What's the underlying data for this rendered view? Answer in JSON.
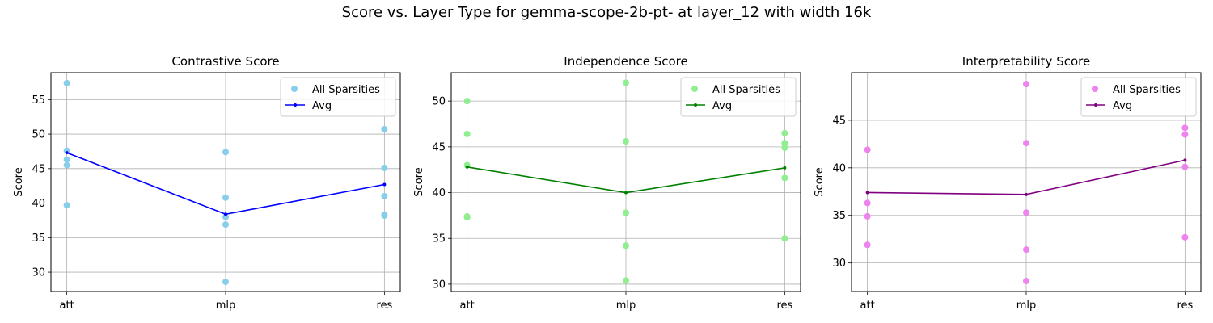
{
  "figure": {
    "title": "Score vs. Layer Type for gemma-scope-2b-pt- at layer_12 with width 16k"
  },
  "chart_data": [
    {
      "type": "scatter",
      "title": "Contrastive Score",
      "xlabel": "",
      "ylabel": "Score",
      "categories": [
        "att",
        "mlp",
        "res"
      ],
      "ylim": [
        27.2,
        58.9
      ],
      "yticks": [
        30,
        35,
        40,
        45,
        50,
        55
      ],
      "grid": true,
      "legend_position": "top-right",
      "scatter_series": {
        "name": "All Sparsities",
        "color": "#87CEEB",
        "points": [
          {
            "x": "att",
            "y": 57.4
          },
          {
            "x": "att",
            "y": 47.6
          },
          {
            "x": "att",
            "y": 46.3
          },
          {
            "x": "att",
            "y": 45.5
          },
          {
            "x": "att",
            "y": 39.7
          },
          {
            "x": "mlp",
            "y": 47.4
          },
          {
            "x": "mlp",
            "y": 40.8
          },
          {
            "x": "mlp",
            "y": 38.0
          },
          {
            "x": "mlp",
            "y": 36.9
          },
          {
            "x": "mlp",
            "y": 28.6
          },
          {
            "x": "res",
            "y": 50.7
          },
          {
            "x": "res",
            "y": 45.1
          },
          {
            "x": "res",
            "y": 41.0
          },
          {
            "x": "res",
            "y": 38.3
          },
          {
            "x": "res",
            "y": 38.2
          }
        ]
      },
      "line_series": {
        "name": "Avg",
        "color": "#0000FF",
        "values": [
          47.3,
          38.4,
          42.7
        ]
      }
    },
    {
      "type": "scatter",
      "title": "Independence Score",
      "xlabel": "",
      "ylabel": "Score",
      "categories": [
        "att",
        "mlp",
        "res"
      ],
      "ylim": [
        29.2,
        53.1
      ],
      "yticks": [
        30,
        35,
        40,
        45,
        50
      ],
      "grid": true,
      "legend_position": "top-right",
      "scatter_series": {
        "name": "All Sparsities",
        "color": "#90EE90",
        "points": [
          {
            "x": "att",
            "y": 50.0
          },
          {
            "x": "att",
            "y": 46.4
          },
          {
            "x": "att",
            "y": 43.0
          },
          {
            "x": "att",
            "y": 37.4
          },
          {
            "x": "att",
            "y": 37.3
          },
          {
            "x": "mlp",
            "y": 52.0
          },
          {
            "x": "mlp",
            "y": 45.6
          },
          {
            "x": "mlp",
            "y": 37.8
          },
          {
            "x": "mlp",
            "y": 34.2
          },
          {
            "x": "mlp",
            "y": 30.4
          },
          {
            "x": "res",
            "y": 46.5
          },
          {
            "x": "res",
            "y": 45.4
          },
          {
            "x": "res",
            "y": 44.9
          },
          {
            "x": "res",
            "y": 41.6
          },
          {
            "x": "res",
            "y": 35.0
          }
        ]
      },
      "line_series": {
        "name": "Avg",
        "color": "#008000",
        "values": [
          42.8,
          40.0,
          42.7
        ]
      }
    },
    {
      "type": "scatter",
      "title": "Interpretability Score",
      "xlabel": "",
      "ylabel": "Score",
      "categories": [
        "att",
        "mlp",
        "res"
      ],
      "ylim": [
        27.0,
        50.0
      ],
      "yticks": [
        30,
        35,
        40,
        45
      ],
      "grid": true,
      "legend_position": "top-right",
      "scatter_series": {
        "name": "All Sparsities",
        "color": "#EE82EE",
        "points": [
          {
            "x": "att",
            "y": 41.9
          },
          {
            "x": "att",
            "y": 36.3
          },
          {
            "x": "att",
            "y": 34.9
          },
          {
            "x": "att",
            "y": 31.9
          },
          {
            "x": "mlp",
            "y": 48.8
          },
          {
            "x": "mlp",
            "y": 42.6
          },
          {
            "x": "mlp",
            "y": 35.3
          },
          {
            "x": "mlp",
            "y": 31.4
          },
          {
            "x": "mlp",
            "y": 28.1
          },
          {
            "x": "res",
            "y": 44.2
          },
          {
            "x": "res",
            "y": 43.5
          },
          {
            "x": "res",
            "y": 40.1
          },
          {
            "x": "res",
            "y": 32.7
          }
        ]
      },
      "line_series": {
        "name": "Avg",
        "color": "#800080",
        "values": [
          37.4,
          37.2,
          40.8
        ]
      }
    }
  ]
}
